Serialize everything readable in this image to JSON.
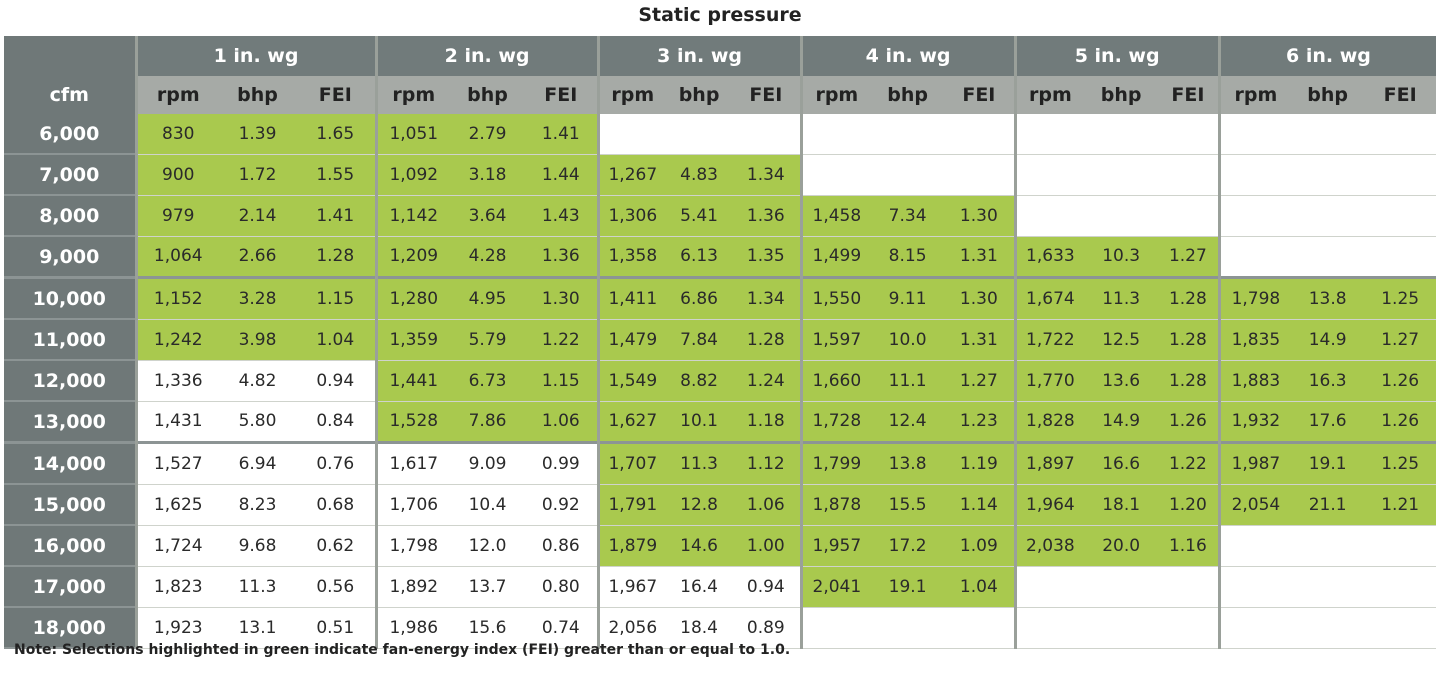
{
  "title": "Static pressure",
  "corner_label": "cfm",
  "groups": [
    "1 in. wg",
    "2 in. wg",
    "3 in. wg",
    "4 in. wg",
    "5 in. wg",
    "6 in. wg"
  ],
  "sub_headers": [
    "rpm",
    "bhp",
    "FEI"
  ],
  "colors": {
    "highlight_green": "#a9c94e",
    "header_dark": "#717b7b",
    "header_light": "#a6aaa6"
  },
  "rows": [
    {
      "cfm": "6,000",
      "cells": [
        [
          "830",
          "1.39",
          "1.65"
        ],
        [
          "1,051",
          "2.79",
          "1.41"
        ],
        null,
        null,
        null,
        null
      ],
      "green": [
        true,
        true,
        false,
        false,
        false,
        false
      ]
    },
    {
      "cfm": "7,000",
      "cells": [
        [
          "900",
          "1.72",
          "1.55"
        ],
        [
          "1,092",
          "3.18",
          "1.44"
        ],
        [
          "1,267",
          "4.83",
          "1.34"
        ],
        null,
        null,
        null
      ],
      "green": [
        true,
        true,
        true,
        false,
        false,
        false
      ]
    },
    {
      "cfm": "8,000",
      "cells": [
        [
          "979",
          "2.14",
          "1.41"
        ],
        [
          "1,142",
          "3.64",
          "1.43"
        ],
        [
          "1,306",
          "5.41",
          "1.36"
        ],
        [
          "1,458",
          "7.34",
          "1.30"
        ],
        null,
        null
      ],
      "green": [
        true,
        true,
        true,
        true,
        false,
        false
      ]
    },
    {
      "cfm": "9,000",
      "cells": [
        [
          "1,064",
          "2.66",
          "1.28"
        ],
        [
          "1,209",
          "4.28",
          "1.36"
        ],
        [
          "1,358",
          "6.13",
          "1.35"
        ],
        [
          "1,499",
          "8.15",
          "1.31"
        ],
        [
          "1,633",
          "10.3",
          "1.27"
        ],
        null
      ],
      "green": [
        true,
        true,
        true,
        true,
        true,
        false
      ]
    },
    {
      "cfm": "10,000",
      "cells": [
        [
          "1,152",
          "3.28",
          "1.15"
        ],
        [
          "1,280",
          "4.95",
          "1.30"
        ],
        [
          "1,411",
          "6.86",
          "1.34"
        ],
        [
          "1,550",
          "9.11",
          "1.30"
        ],
        [
          "1,674",
          "11.3",
          "1.28"
        ],
        [
          "1,798",
          "13.8",
          "1.25"
        ]
      ],
      "green": [
        true,
        true,
        true,
        true,
        true,
        true
      ]
    },
    {
      "cfm": "11,000",
      "cells": [
        [
          "1,242",
          "3.98",
          "1.04"
        ],
        [
          "1,359",
          "5.79",
          "1.22"
        ],
        [
          "1,479",
          "7.84",
          "1.28"
        ],
        [
          "1,597",
          "10.0",
          "1.31"
        ],
        [
          "1,722",
          "12.5",
          "1.28"
        ],
        [
          "1,835",
          "14.9",
          "1.27"
        ]
      ],
      "green": [
        true,
        true,
        true,
        true,
        true,
        true
      ]
    },
    {
      "cfm": "12,000",
      "cells": [
        [
          "1,336",
          "4.82",
          "0.94"
        ],
        [
          "1,441",
          "6.73",
          "1.15"
        ],
        [
          "1,549",
          "8.82",
          "1.24"
        ],
        [
          "1,660",
          "11.1",
          "1.27"
        ],
        [
          "1,770",
          "13.6",
          "1.28"
        ],
        [
          "1,883",
          "16.3",
          "1.26"
        ]
      ],
      "green": [
        false,
        true,
        true,
        true,
        true,
        true
      ]
    },
    {
      "cfm": "13,000",
      "cells": [
        [
          "1,431",
          "5.80",
          "0.84"
        ],
        [
          "1,528",
          "7.86",
          "1.06"
        ],
        [
          "1,627",
          "10.1",
          "1.18"
        ],
        [
          "1,728",
          "12.4",
          "1.23"
        ],
        [
          "1,828",
          "14.9",
          "1.26"
        ],
        [
          "1,932",
          "17.6",
          "1.26"
        ]
      ],
      "green": [
        false,
        true,
        true,
        true,
        true,
        true
      ]
    },
    {
      "cfm": "14,000",
      "cells": [
        [
          "1,527",
          "6.94",
          "0.76"
        ],
        [
          "1,617",
          "9.09",
          "0.99"
        ],
        [
          "1,707",
          "11.3",
          "1.12"
        ],
        [
          "1,799",
          "13.8",
          "1.19"
        ],
        [
          "1,897",
          "16.6",
          "1.22"
        ],
        [
          "1,987",
          "19.1",
          "1.25"
        ]
      ],
      "green": [
        false,
        false,
        true,
        true,
        true,
        true
      ]
    },
    {
      "cfm": "15,000",
      "cells": [
        [
          "1,625",
          "8.23",
          "0.68"
        ],
        [
          "1,706",
          "10.4",
          "0.92"
        ],
        [
          "1,791",
          "12.8",
          "1.06"
        ],
        [
          "1,878",
          "15.5",
          "1.14"
        ],
        [
          "1,964",
          "18.1",
          "1.20"
        ],
        [
          "2,054",
          "21.1",
          "1.21"
        ]
      ],
      "green": [
        false,
        false,
        true,
        true,
        true,
        true
      ]
    },
    {
      "cfm": "16,000",
      "cells": [
        [
          "1,724",
          "9.68",
          "0.62"
        ],
        [
          "1,798",
          "12.0",
          "0.86"
        ],
        [
          "1,879",
          "14.6",
          "1.00"
        ],
        [
          "1,957",
          "17.2",
          "1.09"
        ],
        [
          "2,038",
          "20.0",
          "1.16"
        ],
        null
      ],
      "green": [
        false,
        false,
        true,
        true,
        true,
        false
      ]
    },
    {
      "cfm": "17,000",
      "cells": [
        [
          "1,823",
          "11.3",
          "0.56"
        ],
        [
          "1,892",
          "13.7",
          "0.80"
        ],
        [
          "1,967",
          "16.4",
          "0.94"
        ],
        [
          "2,041",
          "19.1",
          "1.04"
        ],
        null,
        null
      ],
      "green": [
        false,
        false,
        false,
        true,
        false,
        false
      ]
    },
    {
      "cfm": "18,000",
      "cells": [
        [
          "1,923",
          "13.1",
          "0.51"
        ],
        [
          "1,986",
          "15.6",
          "0.74"
        ],
        [
          "2,056",
          "18.4",
          "0.89"
        ],
        null,
        null,
        null
      ],
      "green": [
        false,
        false,
        false,
        false,
        false,
        false
      ]
    }
  ],
  "note": "Note: Selections highlighted in green indicate fan-energy index (FEI) greater than or equal to 1.0."
}
